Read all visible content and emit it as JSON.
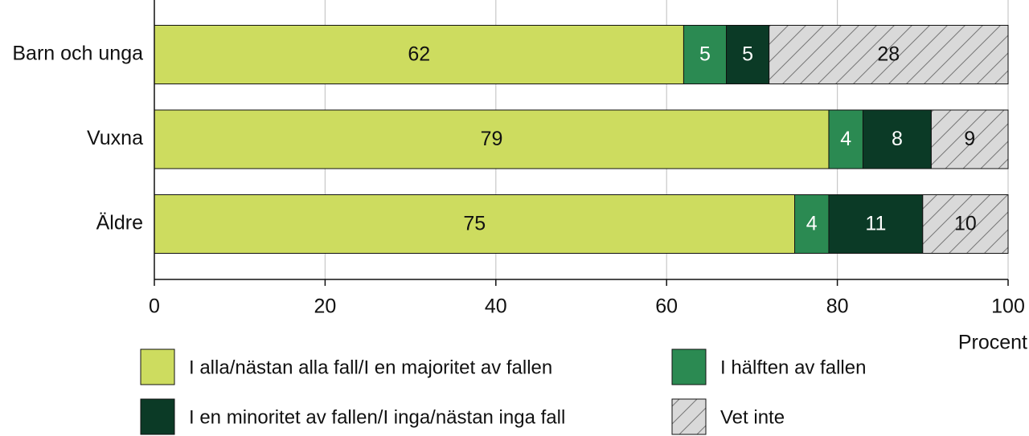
{
  "chart_data": {
    "type": "stacked-bar-horizontal",
    "categories": [
      "Barn och unga",
      "Vuxna",
      "Äldre"
    ],
    "series": [
      {
        "name": "I alla/nästan alla fall/I en majoritet av fallen",
        "color": "#cddc5f",
        "values": [
          62,
          79,
          75
        ]
      },
      {
        "name": "I hälften av fallen",
        "color": "#2b8a52",
        "values": [
          5,
          4,
          4
        ]
      },
      {
        "name": "I en minoritet av fallen/I inga/nästan inga fall",
        "color": "#0b3a26",
        "values": [
          5,
          8,
          11
        ]
      },
      {
        "name": "Vet inte",
        "color": "#d9d9d9",
        "hatch": true,
        "values": [
          28,
          9,
          10
        ]
      }
    ],
    "xlabel": "Procent",
    "xlim": [
      0,
      100
    ],
    "xticks": [
      0,
      20,
      40,
      60,
      80,
      100
    ],
    "grid": true
  }
}
